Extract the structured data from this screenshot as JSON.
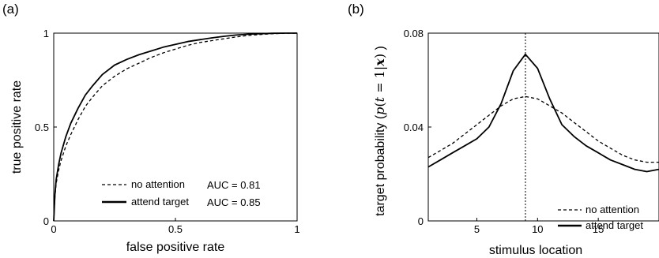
{
  "chart_data": [
    {
      "panel_label": "(a)",
      "type": "line",
      "xlabel": "false positive rate",
      "ylabel": "true positive rate",
      "xlim": [
        0,
        1
      ],
      "ylim": [
        0,
        1
      ],
      "xticks": [
        {
          "v": 0,
          "label": "0"
        },
        {
          "v": 0.5,
          "label": "0.5"
        },
        {
          "v": 1,
          "label": "1"
        }
      ],
      "yticks": [
        {
          "v": 0,
          "label": "0"
        },
        {
          "v": 0.5,
          "label": "0.5"
        },
        {
          "v": 1,
          "label": "1"
        }
      ],
      "grid": false,
      "legend_placement": "bottom-right",
      "series": [
        {
          "name": "no attention",
          "annotation": "AUC = 0.81",
          "style": "dashed",
          "x": [
            0,
            0.005,
            0.01,
            0.02,
            0.03,
            0.05,
            0.07,
            0.1,
            0.13,
            0.16,
            0.2,
            0.25,
            0.3,
            0.35,
            0.4,
            0.45,
            0.5,
            0.55,
            0.6,
            0.65,
            0.7,
            0.75,
            0.8,
            0.85,
            0.9,
            0.95,
            1
          ],
          "y": [
            0,
            0.13,
            0.2,
            0.27,
            0.32,
            0.4,
            0.46,
            0.54,
            0.61,
            0.66,
            0.72,
            0.77,
            0.81,
            0.84,
            0.87,
            0.895,
            0.915,
            0.935,
            0.95,
            0.96,
            0.97,
            0.98,
            0.988,
            0.993,
            0.997,
            0.999,
            1
          ]
        },
        {
          "name": "attend target",
          "annotation": "AUC = 0.85",
          "style": "solid",
          "x": [
            0,
            0.005,
            0.01,
            0.02,
            0.03,
            0.05,
            0.07,
            0.1,
            0.13,
            0.16,
            0.2,
            0.25,
            0.3,
            0.35,
            0.4,
            0.45,
            0.5,
            0.55,
            0.6,
            0.65,
            0.7,
            0.75,
            0.8,
            0.85,
            0.9,
            0.95,
            1
          ],
          "y": [
            0,
            0.14,
            0.22,
            0.3,
            0.36,
            0.45,
            0.52,
            0.6,
            0.67,
            0.72,
            0.78,
            0.83,
            0.86,
            0.885,
            0.905,
            0.925,
            0.94,
            0.955,
            0.965,
            0.975,
            0.983,
            0.99,
            0.994,
            0.997,
            0.999,
            1,
            1
          ]
        }
      ]
    },
    {
      "panel_label": "(b)",
      "type": "line",
      "xlabel": "stimulus location",
      "ylabel": {
        "prefix": "target probability (",
        "math_p": "p",
        "math_open": "(",
        "math_t": "t",
        "math_eq": " = 1|",
        "math_x": "x",
        "math_close": ")",
        "suffix": " )"
      },
      "xlim": [
        1,
        20
      ],
      "ylim": [
        0,
        0.08
      ],
      "xticks": [
        {
          "v": 5,
          "label": "5"
        },
        {
          "v": 10,
          "label": "10"
        },
        {
          "v": 15,
          "label": "15"
        }
      ],
      "yticks": [
        {
          "v": 0,
          "label": "0"
        },
        {
          "v": 0.04,
          "label": "0.04"
        },
        {
          "v": 0.08,
          "label": "0.08"
        }
      ],
      "grid": false,
      "vertical_reference_line": 9,
      "legend_placement": "bottom-right",
      "series": [
        {
          "name": "no attention",
          "style": "dashed",
          "x": [
            1,
            2,
            3,
            4,
            5,
            6,
            7,
            8,
            9,
            10,
            11,
            12,
            13,
            14,
            15,
            16,
            17,
            18,
            19,
            20
          ],
          "y": [
            0.027,
            0.03,
            0.033,
            0.037,
            0.041,
            0.045,
            0.049,
            0.052,
            0.053,
            0.052,
            0.049,
            0.046,
            0.042,
            0.038,
            0.034,
            0.031,
            0.028,
            0.026,
            0.025,
            0.025
          ]
        },
        {
          "name": "attend target",
          "style": "solid",
          "x": [
            1,
            2,
            3,
            4,
            5,
            6,
            7,
            8,
            9,
            10,
            11,
            12,
            13,
            14,
            15,
            16,
            17,
            18,
            19,
            20
          ],
          "y": [
            0.023,
            0.026,
            0.029,
            0.032,
            0.035,
            0.04,
            0.05,
            0.064,
            0.071,
            0.065,
            0.052,
            0.041,
            0.036,
            0.032,
            0.029,
            0.026,
            0.024,
            0.022,
            0.021,
            0.022
          ]
        }
      ]
    }
  ]
}
